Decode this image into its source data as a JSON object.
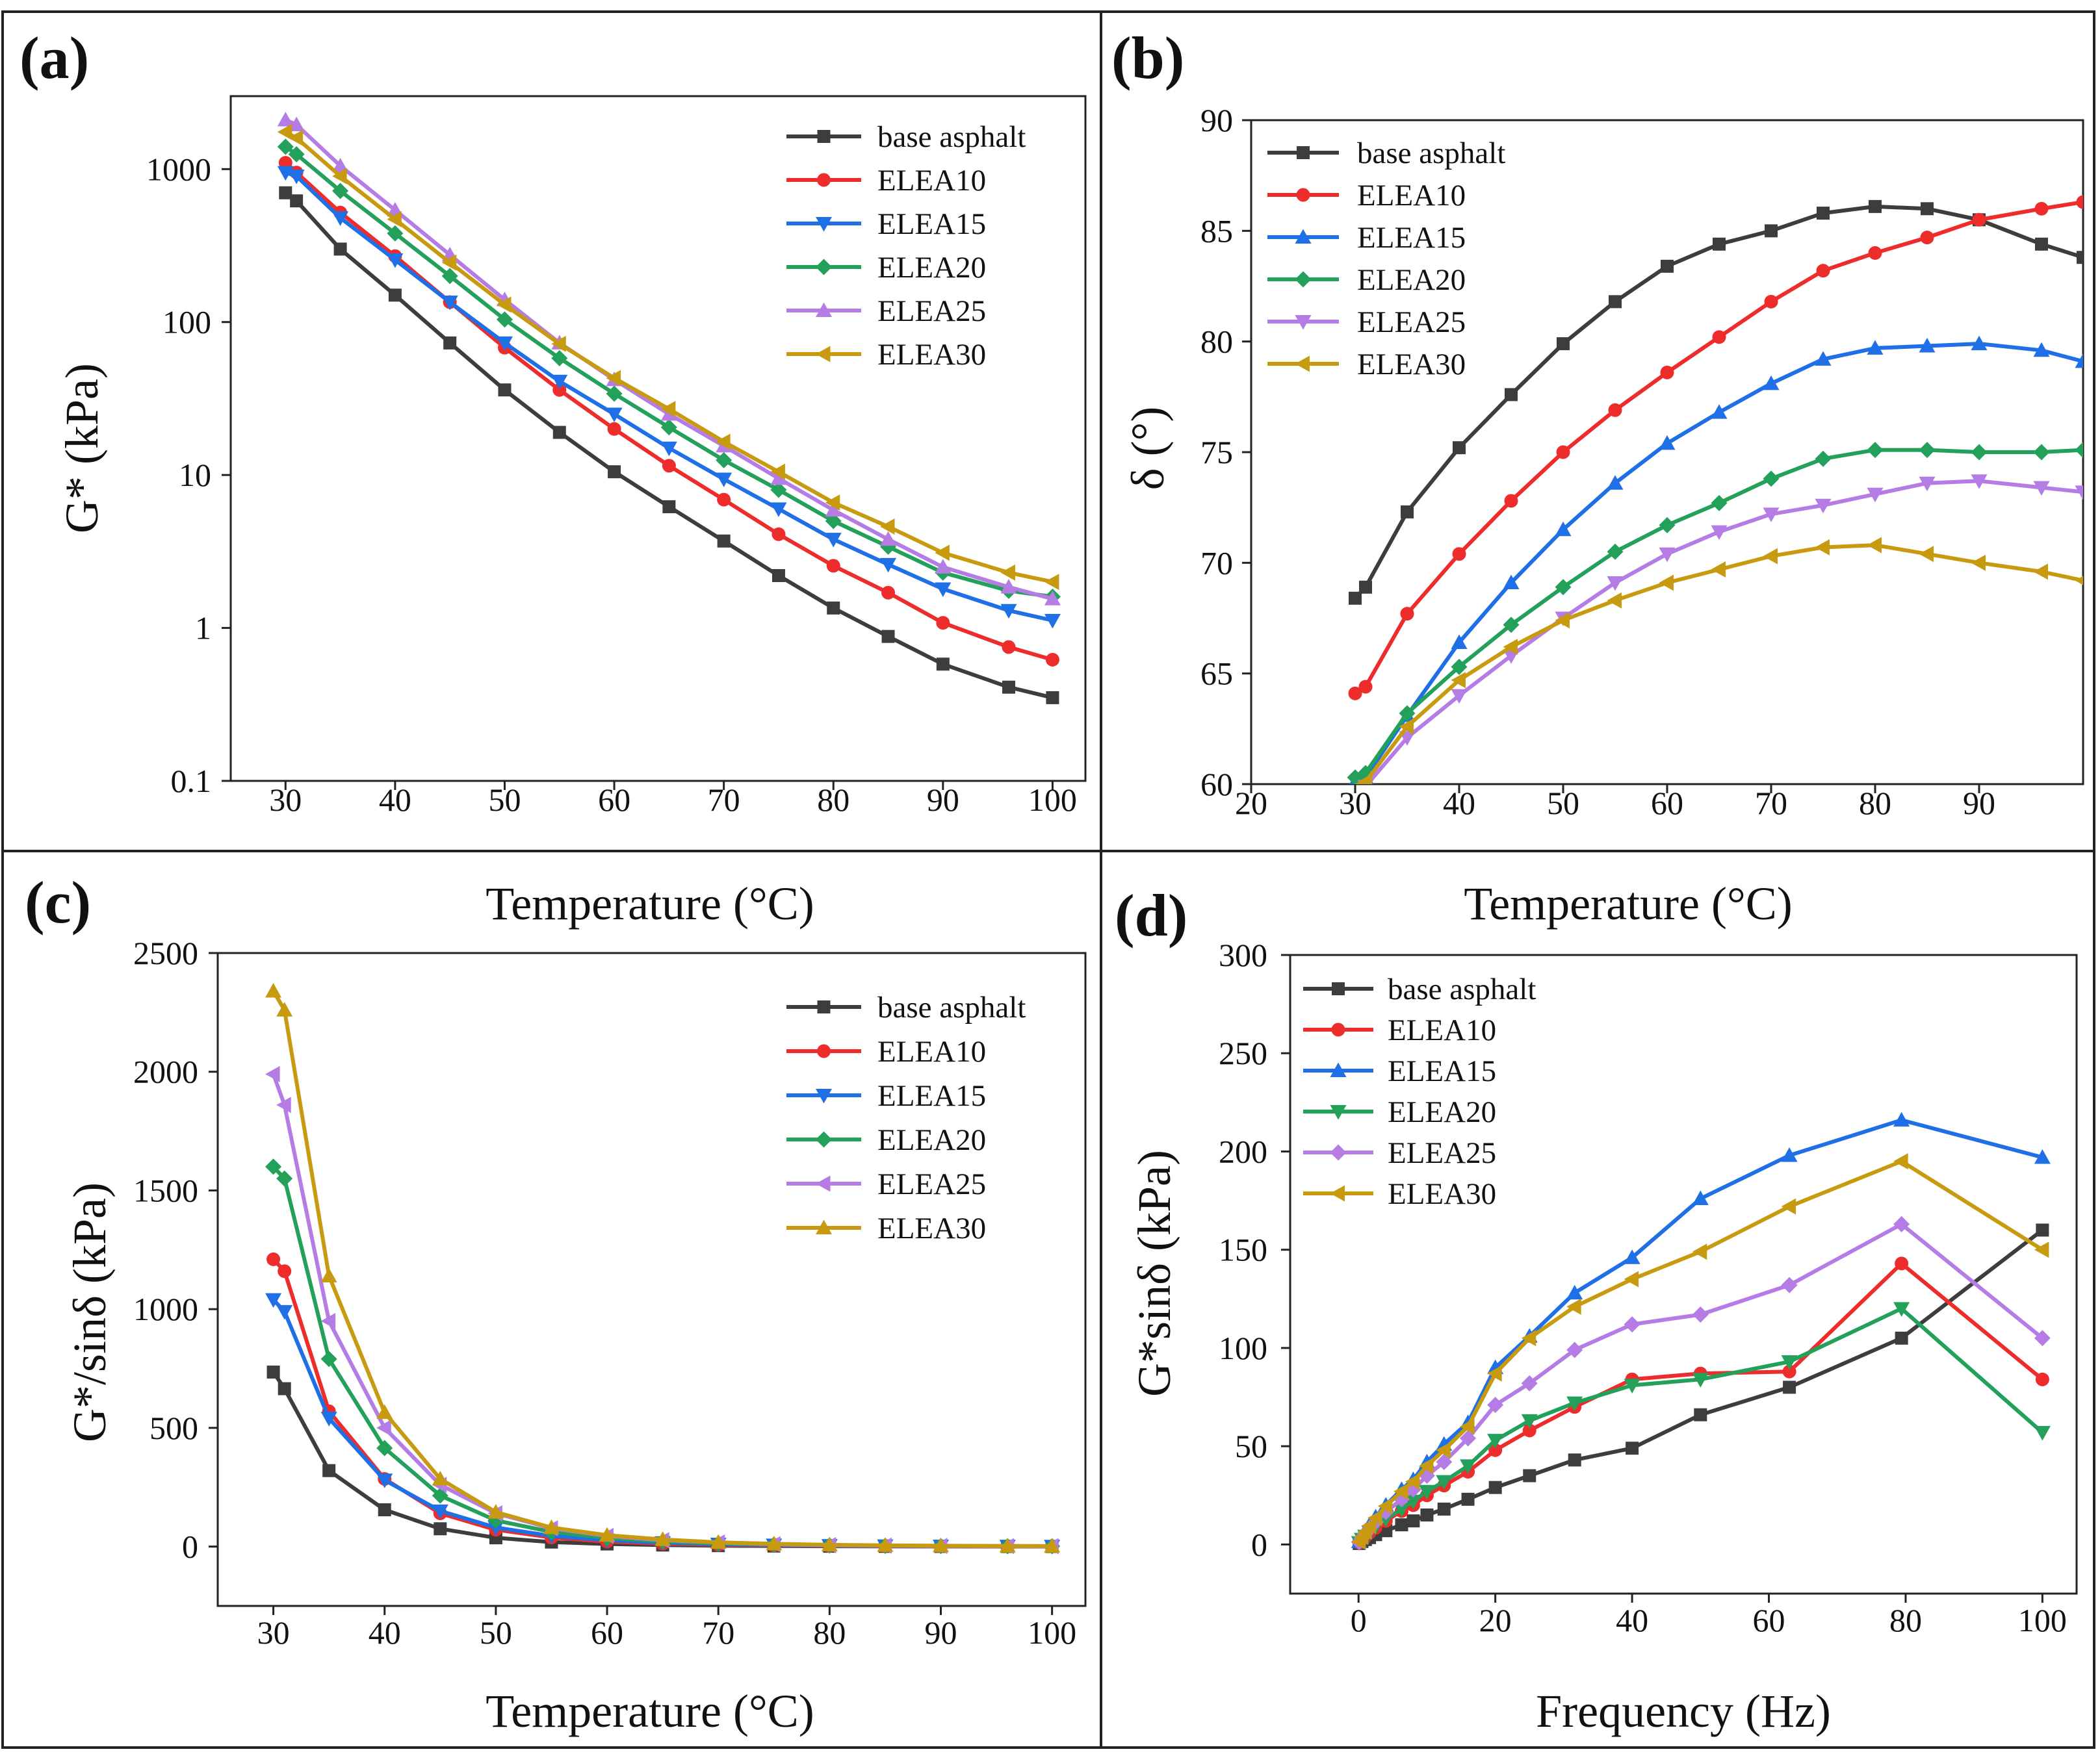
{
  "colors": {
    "base asphalt": "#3d3d3d",
    "ELEA10": "#ee2c2c",
    "ELEA15": "#1f6fe6",
    "ELEA20": "#23a05a",
    "ELEA25": "#b57ce6",
    "ELEA30": "#c79a10"
  },
  "chart_data": [
    {
      "panel_label": "(a)",
      "type": "line",
      "xlabel": "Temperature (°C)",
      "ylabel": "G* (kPa)",
      "yscale": "log",
      "xlim": [
        25,
        103
      ],
      "ylim": [
        0.1,
        3000
      ],
      "xticks": [
        30,
        40,
        50,
        60,
        70,
        80,
        90,
        100
      ],
      "yticks": [
        0.1,
        1,
        10,
        100,
        1000
      ],
      "ytick_labels": [
        "0.1",
        "1",
        "10",
        "100",
        "1000"
      ],
      "legend_position": "top-right",
      "x": [
        30,
        31,
        35,
        40,
        45,
        50,
        55,
        60,
        65,
        70,
        75,
        80,
        85,
        90,
        96,
        100
      ],
      "series": [
        {
          "name": "base asphalt",
          "marker": "square",
          "values": [
            700,
            620,
            300,
            150,
            73,
            36,
            19,
            10.5,
            6.2,
            3.7,
            2.2,
            1.35,
            0.88,
            0.58,
            0.41,
            0.35
          ]
        },
        {
          "name": "ELEA10",
          "marker": "circle",
          "values": [
            1100,
            950,
            520,
            270,
            135,
            68,
            36,
            20,
            11.5,
            6.9,
            4.1,
            2.55,
            1.7,
            1.08,
            0.75,
            0.62
          ]
        },
        {
          "name": "ELEA15",
          "marker": "triangle-down",
          "values": [
            950,
            900,
            480,
            255,
            135,
            73,
            41,
            25,
            15,
            9.4,
            6,
            3.8,
            2.6,
            1.8,
            1.3,
            1.12
          ]
        },
        {
          "name": "ELEA20",
          "marker": "diamond",
          "values": [
            1400,
            1250,
            720,
            380,
            200,
            104,
            58,
            34,
            20.5,
            12.5,
            8,
            5,
            3.4,
            2.3,
            1.75,
            1.6
          ]
        },
        {
          "name": "ELEA25",
          "marker": "triangle-up",
          "values": [
            2100,
            1950,
            1050,
            540,
            275,
            140,
            73,
            42,
            25,
            15.5,
            9.5,
            5.9,
            3.8,
            2.5,
            1.85,
            1.55
          ]
        },
        {
          "name": "ELEA30",
          "marker": "triangle-left",
          "values": [
            1750,
            1600,
            900,
            470,
            245,
            130,
            72,
            43,
            27,
            16.5,
            10.5,
            6.6,
            4.6,
            3.1,
            2.3,
            2.0
          ]
        }
      ]
    },
    {
      "panel_label": "(b)",
      "type": "line",
      "xlabel": "Temperature (°C)",
      "ylabel": "δ (°)",
      "yscale": "linear",
      "xlim": [
        20,
        100
      ],
      "ylim": [
        60,
        90
      ],
      "xticks": [
        20,
        30,
        40,
        50,
        60,
        70,
        80,
        90
      ],
      "yticks": [
        60,
        65,
        70,
        75,
        80,
        85,
        90
      ],
      "legend_position": "top-left",
      "x": [
        30,
        31,
        35,
        40,
        45,
        50,
        55,
        60,
        65,
        70,
        75,
        80,
        85,
        90,
        96,
        100
      ],
      "series": [
        {
          "name": "base asphalt",
          "marker": "square",
          "values": [
            68.4,
            68.9,
            72.3,
            75.2,
            77.6,
            79.9,
            81.8,
            83.4,
            84.4,
            85.0,
            85.8,
            86.1,
            86.0,
            85.5,
            84.4,
            83.8
          ]
        },
        {
          "name": "ELEA10",
          "marker": "circle",
          "values": [
            64.1,
            64.4,
            67.7,
            70.4,
            72.8,
            75.0,
            76.9,
            78.6,
            80.2,
            81.8,
            83.2,
            84.0,
            84.7,
            85.5,
            86.0,
            86.3
          ]
        },
        {
          "name": "ELEA15",
          "marker": "triangle-up",
          "values": [
            60.1,
            60.3,
            63.1,
            66.4,
            69.1,
            71.5,
            73.6,
            75.4,
            76.8,
            78.1,
            79.2,
            79.7,
            79.8,
            79.9,
            79.6,
            79.1
          ]
        },
        {
          "name": "ELEA20",
          "marker": "diamond",
          "values": [
            60.3,
            60.5,
            63.2,
            65.3,
            67.2,
            68.9,
            70.5,
            71.7,
            72.7,
            73.8,
            74.7,
            75.1,
            75.1,
            75.0,
            75.0,
            75.1
          ]
        },
        {
          "name": "ELEA25",
          "marker": "triangle-down",
          "values": [
            59.6,
            59.9,
            62.1,
            64.0,
            65.8,
            67.5,
            69.1,
            70.4,
            71.4,
            72.2,
            72.6,
            73.1,
            73.6,
            73.7,
            73.4,
            73.2
          ]
        },
        {
          "name": "ELEA30",
          "marker": "triangle-left",
          "values": [
            59.8,
            60.1,
            62.6,
            64.7,
            66.2,
            67.4,
            68.3,
            69.1,
            69.7,
            70.3,
            70.7,
            70.8,
            70.4,
            70.0,
            69.6,
            69.2
          ]
        }
      ]
    },
    {
      "panel_label": "(c)",
      "type": "line",
      "xlabel": "Temperature (°C)",
      "ylabel": "G*/sinδ (kPa)",
      "yscale": "linear",
      "xlim": [
        25,
        103
      ],
      "ylim": [
        -250,
        2500
      ],
      "xticks": [
        30,
        40,
        50,
        60,
        70,
        80,
        90,
        100
      ],
      "yticks": [
        0,
        500,
        1000,
        1500,
        2000,
        2500
      ],
      "legend_position": "top-right",
      "x": [
        30,
        31,
        35,
        40,
        45,
        50,
        55,
        60,
        65,
        70,
        75,
        80,
        85,
        90,
        96,
        100
      ],
      "series": [
        {
          "name": "base asphalt",
          "marker": "square",
          "values": [
            735,
            665,
            320,
            155,
            75,
            37,
            19,
            11,
            6.5,
            3.9,
            2.3,
            1.4,
            0.9,
            0.6,
            0.4,
            0.35
          ]
        },
        {
          "name": "ELEA10",
          "marker": "circle",
          "values": [
            1210,
            1160,
            570,
            285,
            140,
            71,
            38,
            21,
            12,
            7.2,
            4.3,
            2.7,
            1.8,
            1.1,
            0.8,
            0.65
          ]
        },
        {
          "name": "ELEA15",
          "marker": "triangle-down",
          "values": [
            1040,
            990,
            540,
            280,
            150,
            80,
            45,
            27,
            16,
            10,
            6.3,
            4,
            2.7,
            1.9,
            1.4,
            1.2
          ]
        },
        {
          "name": "ELEA20",
          "marker": "diamond",
          "values": [
            1600,
            1550,
            790,
            415,
            215,
            110,
            62,
            36,
            22,
            13,
            8.5,
            5.3,
            3.6,
            2.5,
            1.9,
            1.7
          ]
        },
        {
          "name": "ELEA25",
          "marker": "triangle-left",
          "values": [
            1990,
            1860,
            950,
            500,
            260,
            140,
            77,
            45,
            27,
            17,
            10,
            6.3,
            4.1,
            2.7,
            2.0,
            1.7
          ]
        },
        {
          "name": "ELEA30",
          "marker": "triangle-up",
          "values": [
            2340,
            2260,
            1140,
            565,
            285,
            145,
            80,
            48,
            30,
            18,
            11.5,
            7.2,
            5,
            3.4,
            2.5,
            2.1
          ]
        }
      ]
    },
    {
      "panel_label": "(d)",
      "type": "line",
      "xlabel": "Frequency (Hz)",
      "ylabel": "G*sinδ (kPa)",
      "yscale": "linear",
      "xlim": [
        -10,
        105
      ],
      "ylim": [
        -25,
        300
      ],
      "xticks": [
        0,
        20,
        40,
        60,
        80,
        100
      ],
      "yticks": [
        0,
        50,
        100,
        150,
        200,
        250,
        300
      ],
      "legend_position": "top-left",
      "x": [
        0.1,
        0.5,
        1,
        1.6,
        2.5,
        4,
        6.3,
        8,
        10,
        12.5,
        16,
        20,
        25,
        31.6,
        40,
        50,
        63,
        79.4,
        100
      ],
      "series": [
        {
          "name": "base asphalt",
          "marker": "square",
          "values": [
            0.5,
            1.5,
            2.5,
            3.5,
            5,
            7,
            10,
            12,
            15,
            18,
            23,
            29,
            35,
            43,
            49,
            66,
            80,
            105,
            160
          ]
        },
        {
          "name": "ELEA10",
          "marker": "circle",
          "values": [
            0.8,
            2.5,
            4,
            6,
            8.5,
            12,
            17,
            20,
            25,
            30,
            37,
            48,
            58,
            70,
            84,
            87,
            88,
            143,
            84
          ]
        },
        {
          "name": "ELEA15",
          "marker": "triangle-up",
          "values": [
            1.5,
            4,
            7,
            10,
            14,
            20,
            28,
            33,
            42,
            51,
            62,
            90,
            106,
            128,
            146,
            176,
            198,
            216,
            197
          ]
        },
        {
          "name": "ELEA20",
          "marker": "triangle-down",
          "values": [
            0.9,
            2.6,
            4.2,
            6.3,
            9,
            13,
            18,
            22,
            27,
            32,
            40,
            53,
            63,
            72,
            81,
            84,
            93,
            120,
            57
          ]
        },
        {
          "name": "ELEA25",
          "marker": "diamond",
          "values": [
            1.2,
            3.3,
            5.5,
            8,
            11.5,
            16.5,
            23,
            28,
            35,
            42,
            54,
            71,
            82,
            99,
            112,
            117,
            132,
            163,
            105
          ]
        },
        {
          "name": "ELEA30",
          "marker": "triangle-left",
          "values": [
            1.4,
            3.8,
            6.5,
            9.5,
            13.5,
            19.5,
            27,
            32,
            40,
            48,
            60,
            87,
            105,
            121,
            135,
            149,
            172,
            195,
            150
          ]
        }
      ]
    }
  ]
}
